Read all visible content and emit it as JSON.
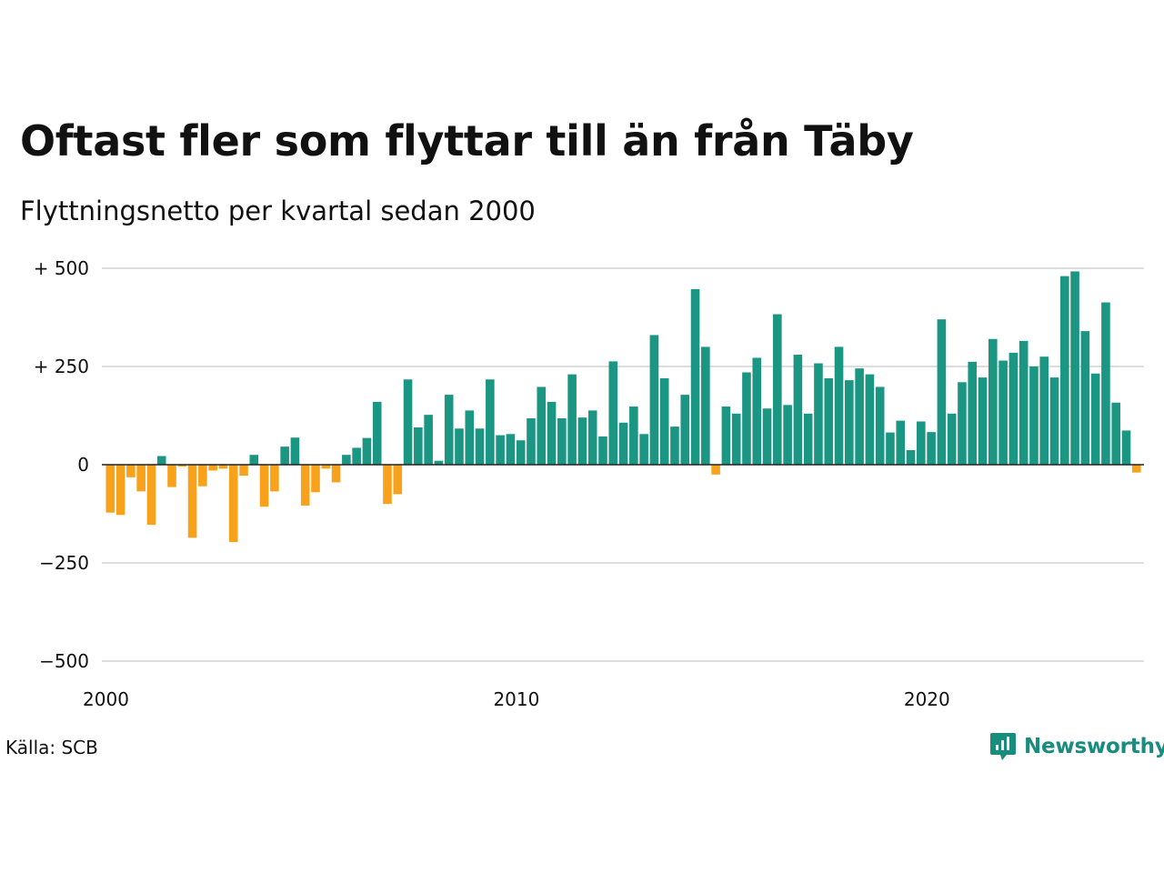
{
  "chart_data": {
    "type": "bar",
    "title": "Oftast fler som flyttar till än från Täby",
    "subtitle": "Flyttningsnetto per kvartal sedan 2000",
    "source": "Källa: SCB",
    "brand": "Newsworthy",
    "x_start_year": 2000,
    "quarters_per_year": 4,
    "xticks": [
      "2000",
      "2010",
      "2020"
    ],
    "yticks": [
      {
        "value": 500,
        "label": "+ 500"
      },
      {
        "value": 250,
        "label": "+ 250"
      },
      {
        "value": 0,
        "label": "0"
      },
      {
        "value": -250,
        "label": "−250"
      },
      {
        "value": -500,
        "label": "−500"
      }
    ],
    "ylim": [
      -500,
      500
    ],
    "grid": true,
    "colors": {
      "positive": "#1a9683",
      "negative": "#f8a21c",
      "grid": "#dddddd",
      "zero": "#222222",
      "brand": "#1a8c7d"
    },
    "values": [
      -122,
      -128,
      -32,
      -68,
      -153,
      22,
      -57,
      -5,
      -186,
      -55,
      -15,
      -10,
      -197,
      -28,
      25,
      -107,
      -68,
      46,
      69,
      -104,
      -70,
      -10,
      -45,
      25,
      43,
      68,
      160,
      -100,
      -75,
      217,
      95,
      127,
      10,
      178,
      92,
      138,
      92,
      217,
      75,
      78,
      62,
      118,
      198,
      160,
      118,
      230,
      120,
      138,
      72,
      263,
      107,
      148,
      78,
      330,
      220,
      97,
      178,
      447,
      300,
      -25,
      148,
      130,
      235,
      272,
      143,
      383,
      152,
      280,
      130,
      258,
      220,
      300,
      215,
      245,
      230,
      198,
      82,
      112,
      37,
      110,
      83,
      370,
      130,
      210,
      262,
      222,
      320,
      265,
      285,
      315,
      250,
      275,
      222,
      480,
      492,
      340,
      232,
      413,
      158,
      87,
      -20
    ]
  }
}
